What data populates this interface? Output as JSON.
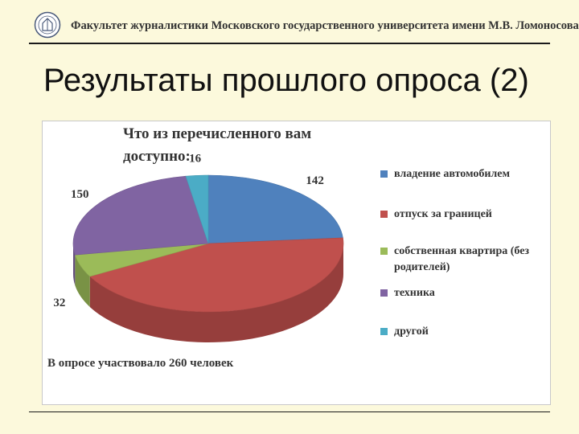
{
  "header": {
    "title": "Факультет журналистики Московского государственного университета имени М.В. Ломоносова"
  },
  "slide": {
    "title": "Результаты прошлого опроса (2)",
    "footnote": "В опросе участвовало 260 человек"
  },
  "chart_data": {
    "type": "pie",
    "title": "Что из перечисленного вам доступно:",
    "categories": [
      "владение автомобилем",
      "отпуск за границей",
      "собственная квартира (без родителей)",
      "техника",
      "другой"
    ],
    "values": [
      142,
      null,
      32,
      150,
      16
    ],
    "data_labels": [
      "142",
      "",
      "32",
      "150",
      "16"
    ],
    "colors": [
      "#4f81bd",
      "#c0504d",
      "#9bbb59",
      "#8064a2",
      "#4bacc6"
    ],
    "legend_position": "right",
    "style": "3d"
  }
}
